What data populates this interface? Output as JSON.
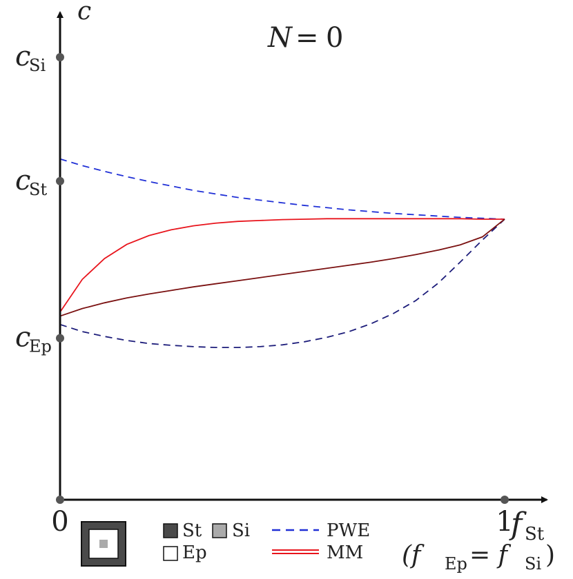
{
  "chart_data": {
    "type": "line",
    "title": "N = 0",
    "title_var": "N",
    "title_value": "0",
    "x_axis": {
      "label": "f",
      "label_sub": "St",
      "range": [
        0,
        1
      ],
      "ticks": [
        {
          "value": 0,
          "label": "0"
        },
        {
          "value": 1,
          "label": "1"
        }
      ],
      "note_prefix": "(f",
      "note_sub1": "Ep",
      "note_mid": " = f",
      "note_sub2": "Si",
      "note_suffix": ")"
    },
    "y_axis": {
      "label": "c",
      "range": [
        0,
        1
      ],
      "ticks": [
        {
          "value": 0.365,
          "label": "c",
          "sub": "Ep"
        },
        {
          "value": 0.72,
          "label": "c",
          "sub": "St"
        },
        {
          "value": 1.0,
          "label": "c",
          "sub": "Si"
        }
      ]
    },
    "series": [
      {
        "group": "PWE",
        "style": "dashed",
        "color": "#1f2fd6",
        "x": [
          0,
          0.05,
          0.1,
          0.15,
          0.2,
          0.25,
          0.3,
          0.35,
          0.4,
          0.45,
          0.5,
          0.55,
          0.6,
          0.65,
          0.7,
          0.75,
          0.8,
          0.85,
          0.9,
          0.95,
          1.0
        ],
        "y": [
          0.77,
          0.755,
          0.742,
          0.73,
          0.719,
          0.709,
          0.699,
          0.691,
          0.683,
          0.677,
          0.671,
          0.665,
          0.66,
          0.655,
          0.651,
          0.647,
          0.644,
          0.641,
          0.638,
          0.636,
          0.634
        ]
      },
      {
        "group": "PWE",
        "style": "dashed",
        "color": "#1c1c7a",
        "x": [
          0,
          0.05,
          0.1,
          0.15,
          0.2,
          0.25,
          0.3,
          0.35,
          0.4,
          0.45,
          0.5,
          0.55,
          0.6,
          0.65,
          0.7,
          0.75,
          0.8,
          0.85,
          0.9,
          0.95,
          1.0
        ],
        "y": [
          0.396,
          0.38,
          0.369,
          0.36,
          0.353,
          0.349,
          0.346,
          0.344,
          0.344,
          0.346,
          0.35,
          0.357,
          0.367,
          0.38,
          0.398,
          0.421,
          0.45,
          0.489,
          0.537,
          0.587,
          0.634
        ]
      },
      {
        "group": "MM",
        "style": "solid",
        "color": "#e8141c",
        "x": [
          0,
          0.05,
          0.1,
          0.15,
          0.2,
          0.25,
          0.3,
          0.35,
          0.4,
          0.45,
          0.5,
          0.55,
          0.6,
          0.65,
          0.7,
          0.75,
          0.8,
          0.85,
          0.9,
          0.95,
          1.0
        ],
        "y": [
          0.424,
          0.498,
          0.545,
          0.577,
          0.597,
          0.61,
          0.619,
          0.625,
          0.629,
          0.631,
          0.633,
          0.634,
          0.635,
          0.635,
          0.635,
          0.635,
          0.635,
          0.635,
          0.635,
          0.634,
          0.634
        ]
      },
      {
        "group": "MM",
        "style": "solid",
        "color": "#7a1010",
        "x": [
          0,
          0.05,
          0.1,
          0.15,
          0.2,
          0.25,
          0.3,
          0.35,
          0.4,
          0.45,
          0.5,
          0.55,
          0.6,
          0.65,
          0.7,
          0.75,
          0.8,
          0.85,
          0.9,
          0.95,
          1.0
        ],
        "y": [
          0.415,
          0.432,
          0.445,
          0.456,
          0.465,
          0.473,
          0.481,
          0.488,
          0.495,
          0.502,
          0.509,
          0.516,
          0.523,
          0.53,
          0.537,
          0.545,
          0.554,
          0.564,
          0.576,
          0.594,
          0.634
        ]
      }
    ],
    "legend": {
      "materials": [
        {
          "label": "St",
          "color": "#4a4a4a"
        },
        {
          "label": "Si",
          "color": "#aaaaaa"
        },
        {
          "label": "Ep",
          "color": "#ffffff"
        }
      ],
      "lines": [
        {
          "label": "PWE",
          "style": "dashed",
          "color": "#1f2fd6"
        },
        {
          "label": "MM",
          "style": "solid",
          "color": "#e8141c",
          "color2": "#7a1010"
        }
      ],
      "unit_cell_colors": {
        "outer": "#4a4a4a",
        "middle": "#ffffff",
        "inner": "#aaaaaa"
      }
    },
    "grid": false
  }
}
